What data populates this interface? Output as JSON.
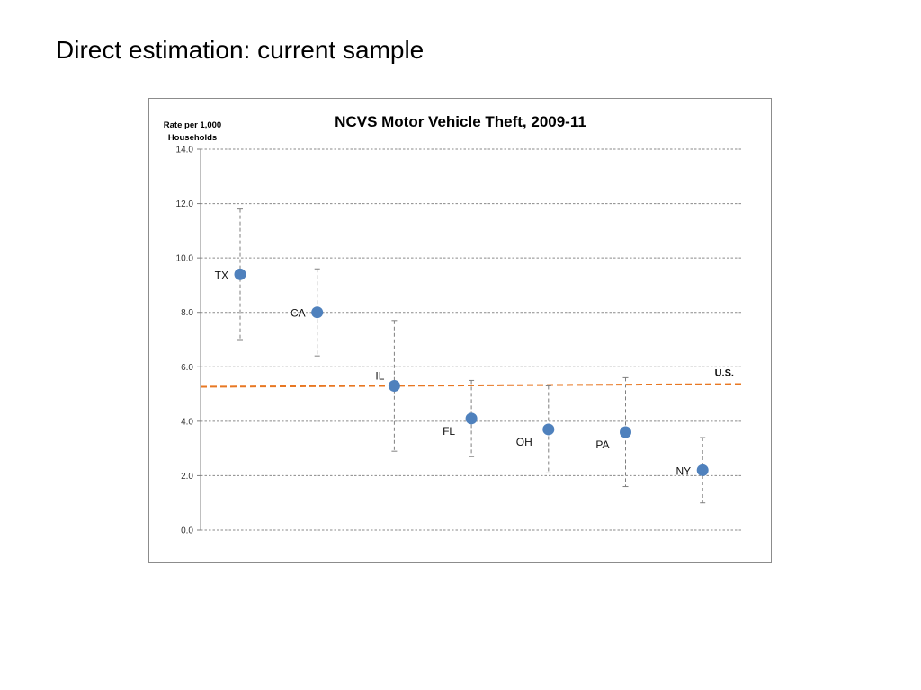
{
  "slide": {
    "title": "Direct estimation: current sample"
  },
  "chart_data": {
    "type": "scatter",
    "title": "NCVS Motor Vehicle Theft, 2009-11",
    "ylabel_lines": [
      "Rate per 1,000",
      "Households"
    ],
    "xlabel": "",
    "ylim": [
      0,
      14
    ],
    "yticks": [
      "0.0",
      "2.0",
      "4.0",
      "6.0",
      "8.0",
      "10.0",
      "12.0",
      "14.0"
    ],
    "grid": true,
    "categories": [
      "TX",
      "CA",
      "IL",
      "FL",
      "OH",
      "PA",
      "NY"
    ],
    "values": [
      9.4,
      8.0,
      5.3,
      4.1,
      3.7,
      3.6,
      2.2
    ],
    "ci_lower": [
      7.0,
      6.4,
      2.9,
      2.7,
      2.1,
      1.6,
      1.0
    ],
    "ci_upper": [
      11.8,
      9.6,
      7.7,
      5.5,
      5.3,
      5.6,
      3.4
    ],
    "reference_line": {
      "label": "U.S.",
      "value": 5.3,
      "color": "#E87722"
    },
    "colors": {
      "point": "#4F81BD",
      "error_bar": "#7f7f7f",
      "grid": "#8a8a8a",
      "axis": "#7f7f7f"
    }
  }
}
